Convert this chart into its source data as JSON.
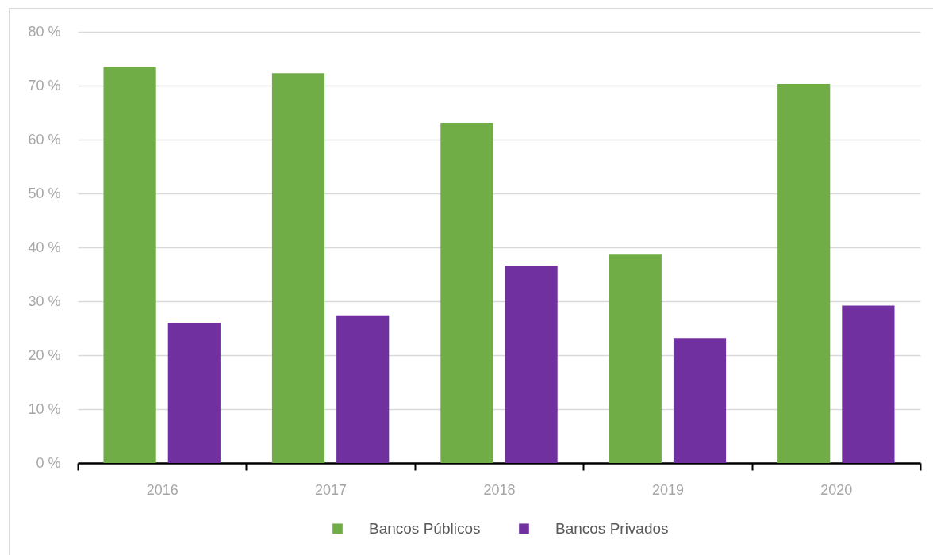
{
  "chart_data": {
    "type": "bar",
    "categories": [
      "2016",
      "2017",
      "2018",
      "2019",
      "2020"
    ],
    "series": [
      {
        "name": "Bancos Públicos",
        "color": "#70ad47",
        "values": [
          73.5,
          72.3,
          63.1,
          38.8,
          70.3
        ]
      },
      {
        "name": "Bancos Privados",
        "color": "#7030a0",
        "values": [
          26.0,
          27.4,
          36.6,
          23.2,
          29.2
        ]
      }
    ],
    "ylim": [
      0,
      80
    ],
    "yticks": [
      {
        "value": 0,
        "label": "0 %"
      },
      {
        "value": 10,
        "label": "10 %"
      },
      {
        "value": 20,
        "label": "20 %"
      },
      {
        "value": 30,
        "label": "30 %"
      },
      {
        "value": 40,
        "label": "40 %"
      },
      {
        "value": 50,
        "label": "50 %"
      },
      {
        "value": 60,
        "label": "60 %"
      },
      {
        "value": 70,
        "label": "70 %"
      },
      {
        "value": 80,
        "label": "80 %"
      }
    ],
    "grid": "y",
    "legend": "bottom"
  }
}
